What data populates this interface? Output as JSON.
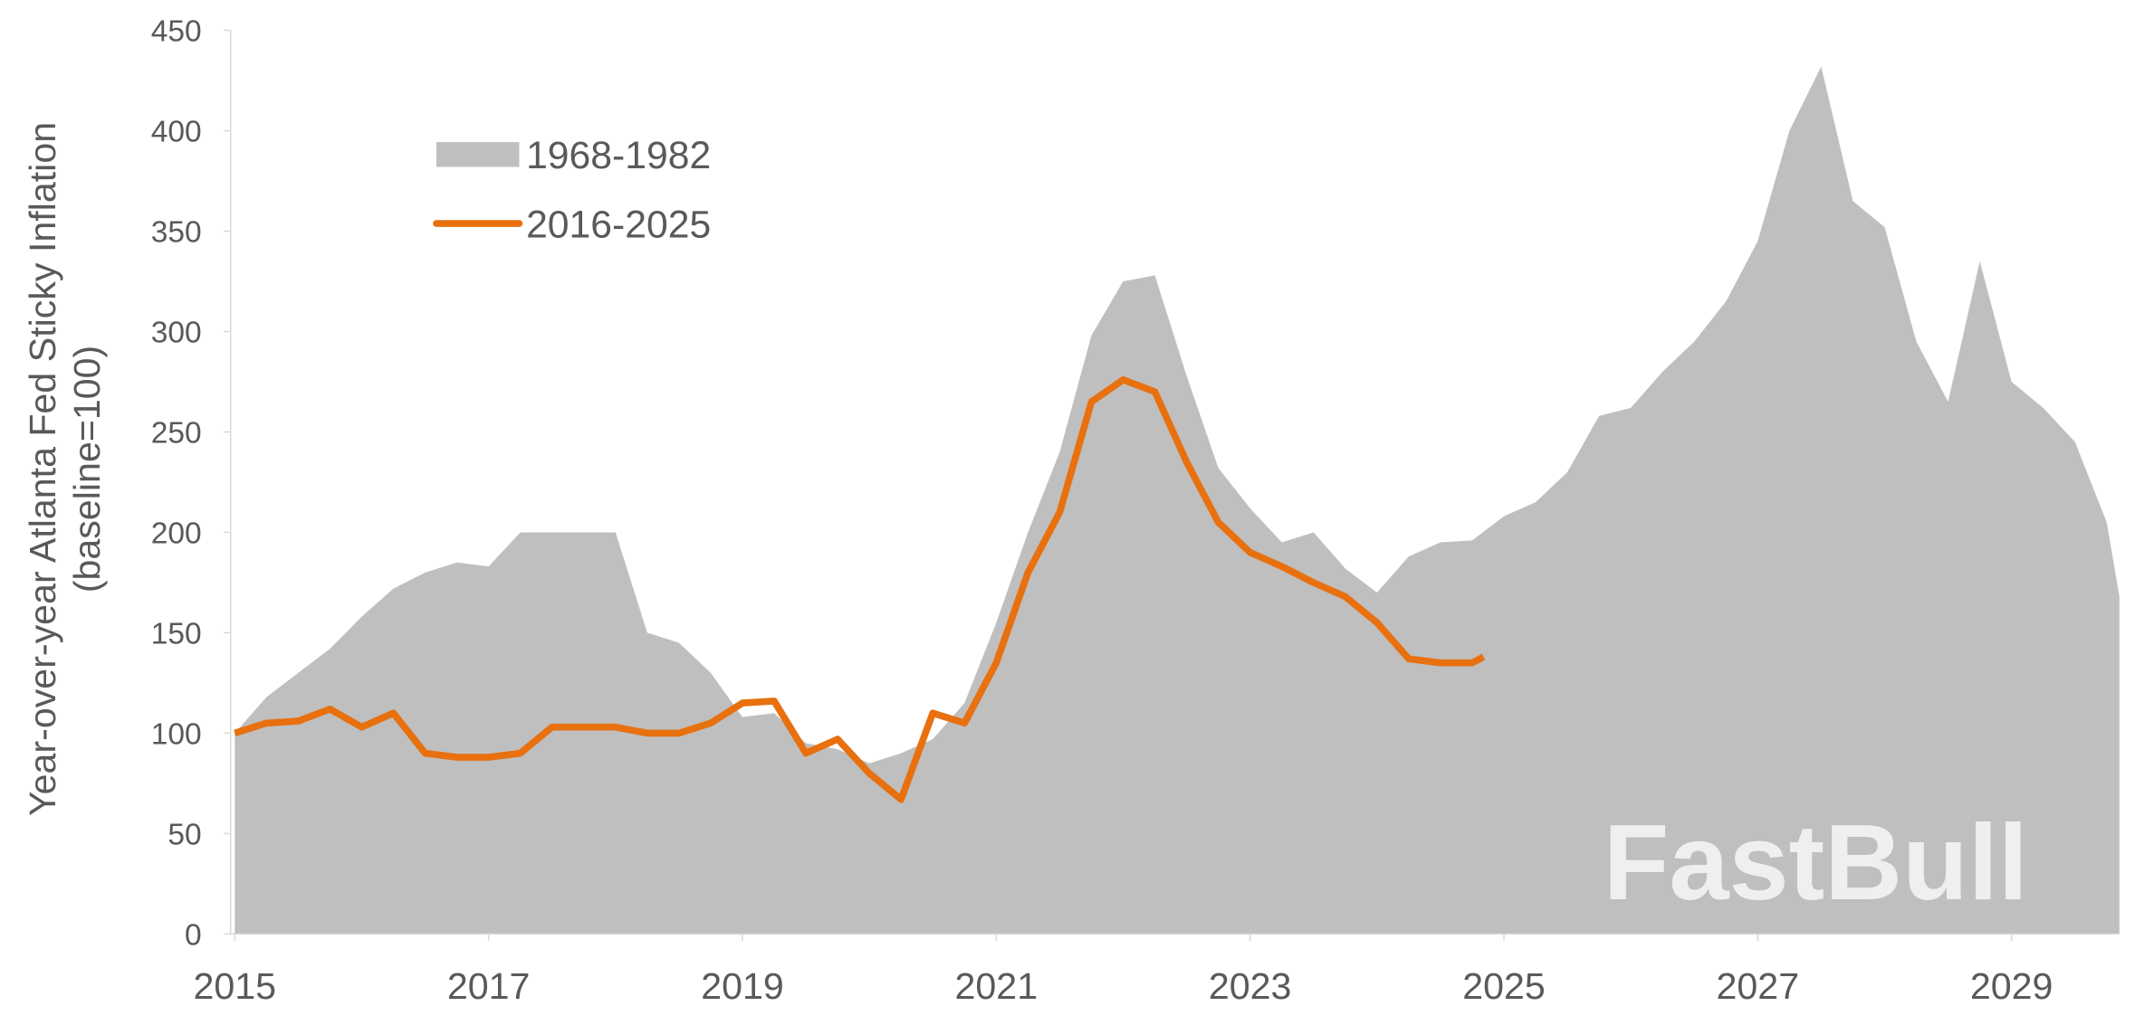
{
  "chart_data": {
    "type": "area-line",
    "ylabel": [
      "Year-over-year Atlanta Fed Sticky Inflation",
      "(baseline=100)"
    ],
    "watermark": "FastBull",
    "xlim": [
      2015,
      2029.85
    ],
    "xticks": [
      2015,
      2017,
      2019,
      2021,
      2023,
      2025,
      2027,
      2029
    ],
    "ylim": [
      0,
      450
    ],
    "yticks": [
      0,
      50,
      100,
      150,
      200,
      250,
      300,
      350,
      400,
      450
    ],
    "legend": "top-left",
    "series": [
      {
        "name": "1968-1982",
        "kind": "area",
        "color": "#bfbfbf",
        "x": [
          2015,
          2015.25,
          2015.5,
          2015.75,
          2016,
          2016.25,
          2016.5,
          2016.75,
          2017,
          2017.25,
          2017.5,
          2017.75,
          2018,
          2018.25,
          2018.5,
          2018.75,
          2019,
          2019.25,
          2019.5,
          2019.75,
          2020,
          2020.25,
          2020.5,
          2020.75,
          2021,
          2021.25,
          2021.5,
          2021.75,
          2022,
          2022.25,
          2022.5,
          2022.75,
          2023,
          2023.25,
          2023.5,
          2023.75,
          2024,
          2024.25,
          2024.5,
          2024.75,
          2025,
          2025.25,
          2025.5,
          2025.75,
          2026,
          2026.25,
          2026.5,
          2026.75,
          2027,
          2027.25,
          2027.5,
          2027.75,
          2028,
          2028.25,
          2028.5,
          2028.75,
          2029,
          2029.25,
          2029.5,
          2029.75,
          2029.85
        ],
        "values": [
          100,
          118,
          130,
          142,
          158,
          172,
          180,
          185,
          183,
          200,
          200,
          200,
          200,
          150,
          145,
          130,
          108,
          110,
          95,
          92,
          85,
          90,
          97,
          115,
          155,
          200,
          240,
          298,
          325,
          328,
          278,
          232,
          212,
          195,
          200,
          182,
          170,
          188,
          195,
          196,
          208,
          215,
          230,
          258,
          262,
          280,
          295,
          315,
          345,
          400,
          432,
          365,
          352,
          295,
          265,
          335,
          275,
          262,
          245,
          205,
          168
        ]
      },
      {
        "name": "2016-2025",
        "kind": "line",
        "color": "#e8700f",
        "x": [
          2015,
          2015.25,
          2015.5,
          2015.75,
          2016,
          2016.25,
          2016.5,
          2016.75,
          2017,
          2017.25,
          2017.5,
          2017.75,
          2018,
          2018.25,
          2018.5,
          2018.75,
          2019,
          2019.25,
          2019.5,
          2019.75,
          2020,
          2020.25,
          2020.5,
          2020.75,
          2021,
          2021.25,
          2021.5,
          2021.75,
          2022,
          2022.25,
          2022.5,
          2022.75,
          2023,
          2023.25,
          2023.5,
          2023.75,
          2024,
          2024.25,
          2024.5,
          2024.75,
          2024.84
        ],
        "values": [
          100,
          105,
          106,
          112,
          103,
          110,
          90,
          88,
          88,
          90,
          103,
          103,
          103,
          100,
          100,
          105,
          115,
          116,
          90,
          97,
          80,
          67,
          110,
          105,
          135,
          180,
          210,
          265,
          276,
          270,
          235,
          205,
          190,
          183,
          175,
          168,
          155,
          137,
          135,
          135,
          138
        ]
      }
    ]
  }
}
